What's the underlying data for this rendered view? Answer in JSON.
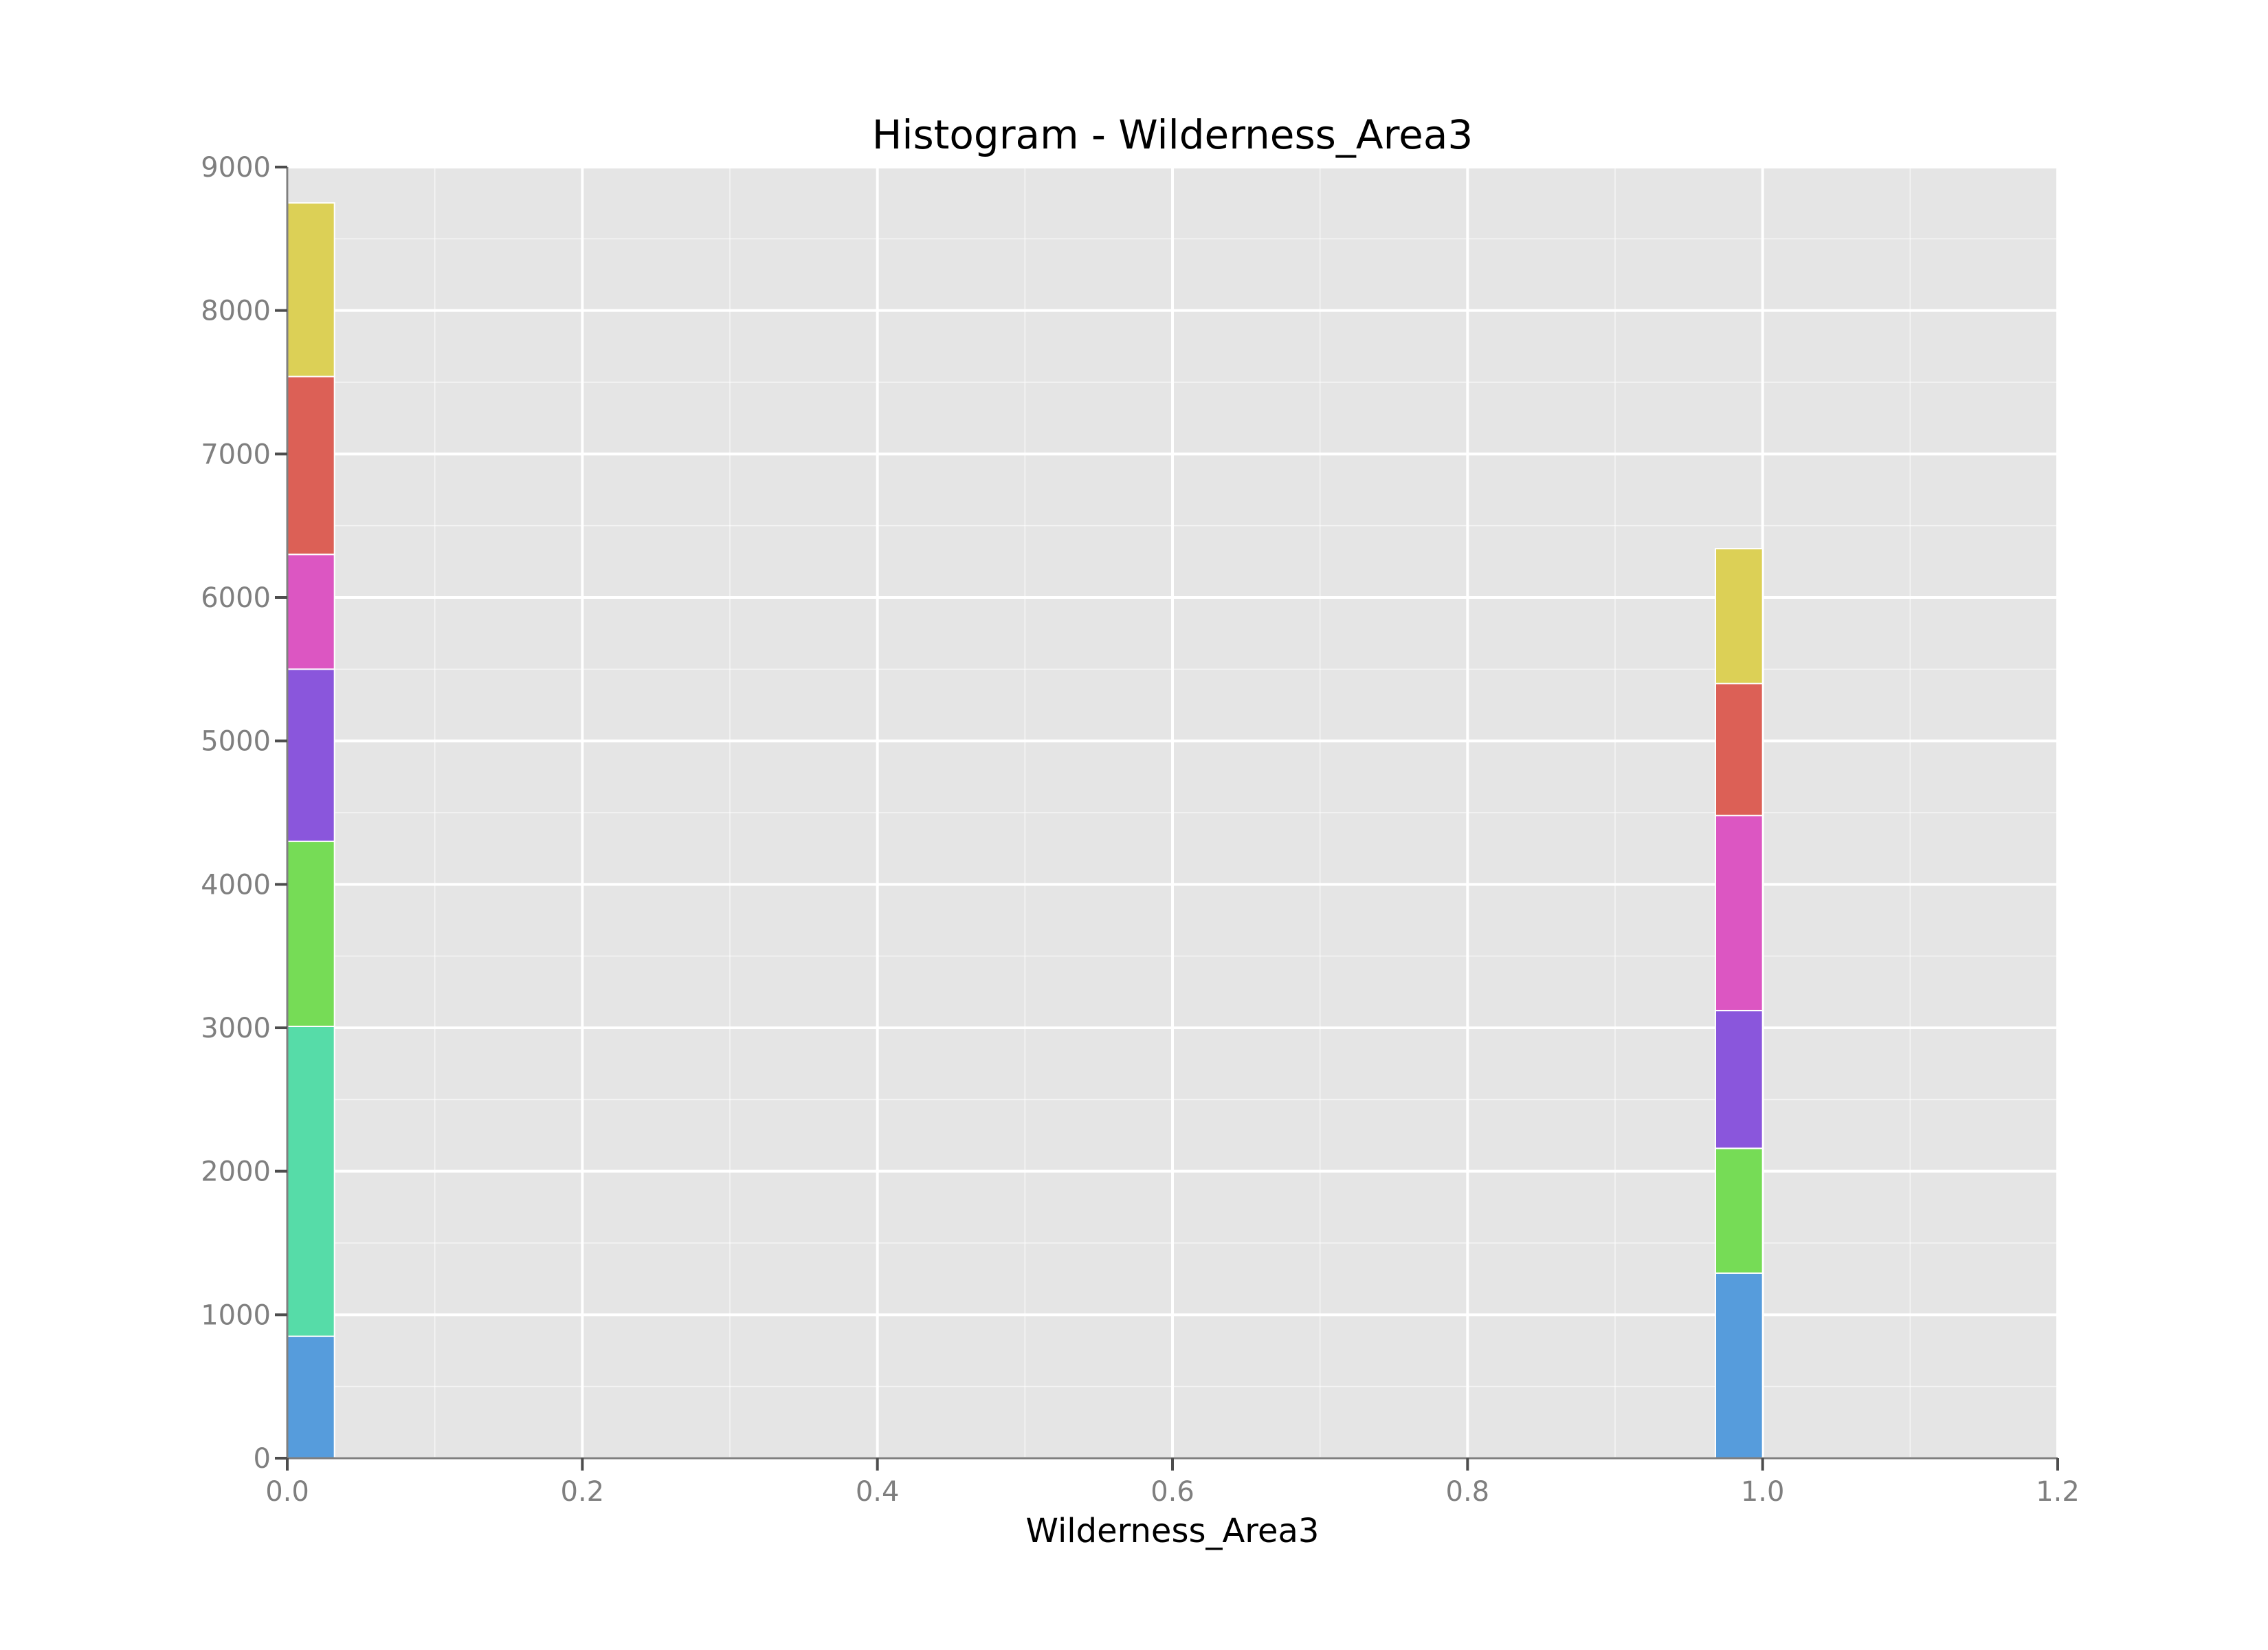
{
  "chart_data": {
    "type": "bar",
    "stacked": true,
    "title": "Histogram - Wilderness_Area3",
    "xlabel": "Wilderness_Area3",
    "ylabel": "",
    "xlim": [
      0.0,
      1.2
    ],
    "ylim": [
      0,
      9000
    ],
    "x_ticks": [
      "0.0",
      "0.2",
      "0.4",
      "0.6",
      "0.8",
      "1.0",
      "1.2"
    ],
    "y_ticks": [
      "0",
      "1000",
      "2000",
      "3000",
      "4000",
      "5000",
      "6000",
      "7000",
      "8000",
      "9000"
    ],
    "grid": true,
    "legend": "none",
    "bins": [
      {
        "x_start": 0.0,
        "x_end": 0.032
      },
      {
        "x_start": 0.968,
        "x_end": 1.0
      }
    ],
    "series": [
      {
        "color": "#569cdc",
        "values": [
          850,
          1290
        ]
      },
      {
        "color": "#56dca8",
        "values": [
          2160,
          0
        ]
      },
      {
        "color": "#76dc56",
        "values": [
          1290,
          870
        ]
      },
      {
        "color": "#8a56dc",
        "values": [
          1200,
          960
        ]
      },
      {
        "color": "#dc56c2",
        "values": [
          800,
          1360
        ]
      },
      {
        "color": "#dc6056",
        "values": [
          1240,
          920
        ]
      },
      {
        "color": "#dcd056",
        "values": [
          1210,
          940
        ]
      }
    ],
    "colors": {
      "panel_background": "#e5e5e5",
      "grid_line": "#ffffff",
      "tick_text": "#7f7f7f"
    }
  }
}
